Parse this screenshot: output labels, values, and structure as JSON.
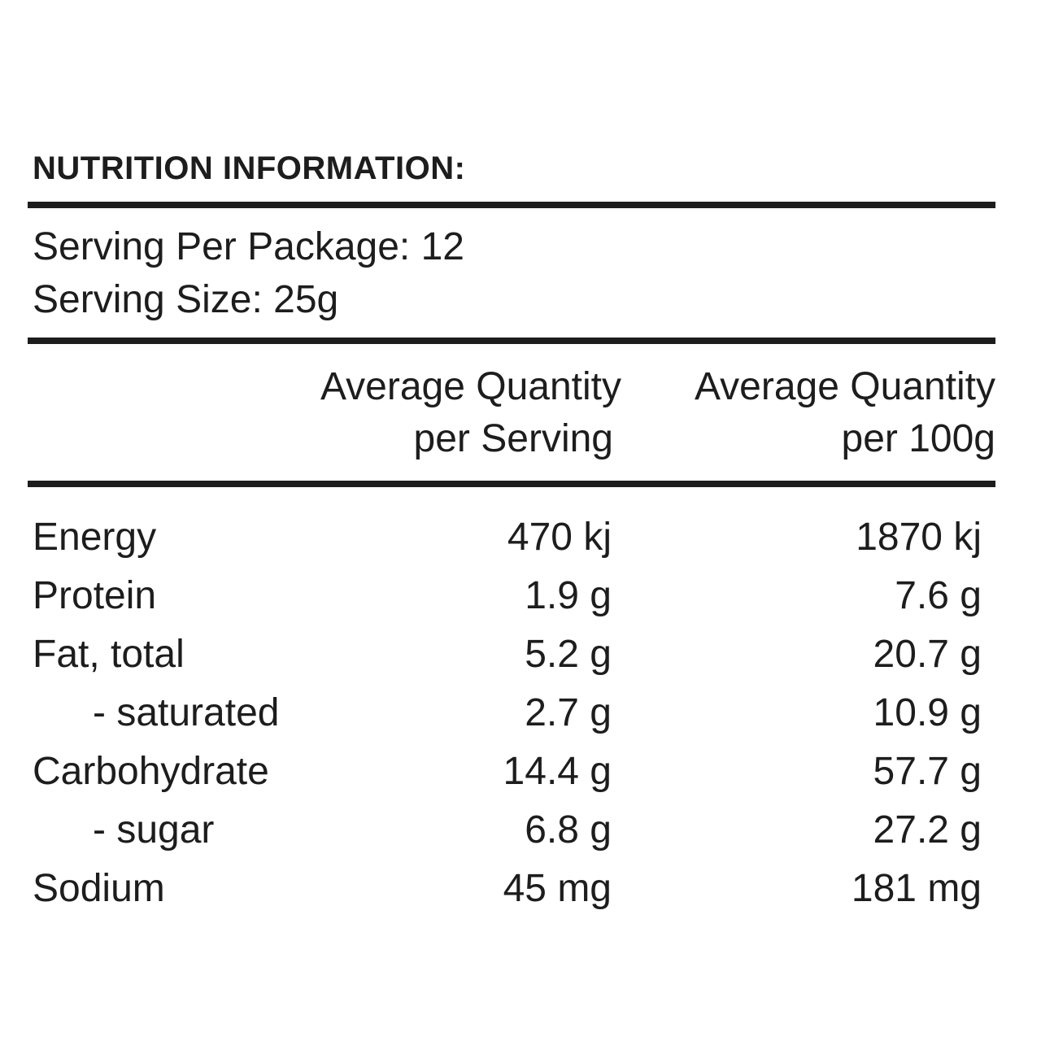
{
  "page": {
    "background_color": "#ffffff",
    "text_color": "#1d1d1d",
    "rule_color": "#1d1d1d"
  },
  "title": "NUTRITION INFORMATION:",
  "serving_info": {
    "per_package": "Serving Per Package: 12",
    "size": "Serving Size: 25g"
  },
  "table": {
    "column_headers": {
      "per_serving": {
        "line1": "Average Quantity",
        "line2": "per Serving"
      },
      "per_100g": {
        "line1": "Average Quantity",
        "line2": "per 100g"
      }
    },
    "rows": [
      {
        "label": "Energy",
        "per_serving": "470 kj",
        "per_100g": "1870 kj"
      },
      {
        "label": "Protein",
        "per_serving": "1.9 g",
        "per_100g": "7.6 g"
      },
      {
        "label": "Fat, total",
        "per_serving": "5.2 g",
        "per_100g": "20.7 g"
      },
      {
        "label": "- saturated",
        "per_serving": "2.7 g",
        "per_100g": "10.9 g"
      },
      {
        "label": "Carbohydrate",
        "per_serving": "14.4 g",
        "per_100g": "57.7 g"
      },
      {
        "label": "- sugar",
        "per_serving": "6.8 g",
        "per_100g": "27.2 g"
      },
      {
        "label": "Sodium",
        "per_serving": "45 mg",
        "per_100g": "181 mg"
      }
    ]
  }
}
